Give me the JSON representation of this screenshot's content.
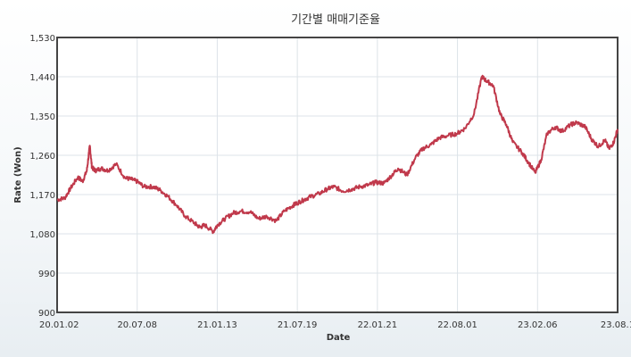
{
  "chart_data": {
    "type": "line",
    "title": "기간별 매매기준율",
    "xlabel": "Date",
    "ylabel": "Rate (Won)",
    "ylim": [
      900,
      1530
    ],
    "yticks": [
      "900",
      "990",
      "1,080",
      "1,170",
      "1,260",
      "1,350",
      "1,440",
      "1,530"
    ],
    "ytick_values": [
      900,
      990,
      1080,
      1170,
      1260,
      1350,
      1440,
      1530
    ],
    "xticks": [
      "20.01.02",
      "20.07.08",
      "21.01.13",
      "21.07.19",
      "22.01.21",
      "22.08.01",
      "23.02.06",
      "23.08.1"
    ],
    "xlim": [
      "2020-01-02",
      "2023-08-14"
    ],
    "grid": true,
    "colors": {
      "line": "#c0394b",
      "grid": "#dde3e8",
      "frame": "#444444"
    },
    "series": [
      {
        "x": [
          "2020-01-02",
          "2020-01-20",
          "2020-02-03",
          "2020-02-20",
          "2020-03-02",
          "2020-03-12",
          "2020-03-19",
          "2020-03-24",
          "2020-04-01",
          "2020-04-15",
          "2020-05-01",
          "2020-05-20",
          "2020-06-10",
          "2020-06-25",
          "2020-07-08",
          "2020-07-25",
          "2020-08-15",
          "2020-09-01",
          "2020-09-20",
          "2020-10-10",
          "2020-10-30",
          "2020-11-20",
          "2020-12-03",
          "2020-12-15",
          "2021-01-04",
          "2021-01-13",
          "2021-02-01",
          "2021-02-20",
          "2021-03-10",
          "2021-04-01",
          "2021-04-20",
          "2021-05-10",
          "2021-06-01",
          "2021-06-20",
          "2021-07-10",
          "2021-07-19",
          "2021-08-05",
          "2021-08-20",
          "2021-09-10",
          "2021-09-30",
          "2021-10-15",
          "2021-11-05",
          "2021-11-25",
          "2021-12-15",
          "2022-01-05",
          "2022-01-21",
          "2022-02-10",
          "2022-03-01",
          "2022-03-15",
          "2022-04-05",
          "2022-04-25",
          "2022-05-12",
          "2022-06-01",
          "2022-06-20",
          "2022-07-10",
          "2022-08-01",
          "2022-08-20",
          "2022-09-10",
          "2022-09-28",
          "2022-10-10",
          "2022-10-25",
          "2022-11-10",
          "2022-11-25",
          "2022-12-10",
          "2023-01-02",
          "2023-01-15",
          "2023-02-01",
          "2023-02-15",
          "2023-03-01",
          "2023-03-20",
          "2023-04-05",
          "2023-04-25",
          "2023-05-10",
          "2023-05-30",
          "2023-06-15",
          "2023-06-30",
          "2023-07-15",
          "2023-07-25",
          "2023-08-05",
          "2023-08-14"
        ],
        "values": [
          1158,
          1162,
          1185,
          1210,
          1200,
          1225,
          1282,
          1232,
          1225,
          1230,
          1225,
          1240,
          1208,
          1205,
          1200,
          1188,
          1188,
          1180,
          1165,
          1145,
          1120,
          1105,
          1095,
          1100,
          1085,
          1100,
          1115,
          1128,
          1132,
          1130,
          1115,
          1120,
          1110,
          1132,
          1145,
          1150,
          1158,
          1165,
          1172,
          1183,
          1188,
          1178,
          1182,
          1188,
          1192,
          1198,
          1196,
          1215,
          1230,
          1215,
          1255,
          1275,
          1285,
          1300,
          1305,
          1310,
          1322,
          1355,
          1440,
          1430,
          1420,
          1355,
          1330,
          1290,
          1265,
          1245,
          1220,
          1250,
          1310,
          1325,
          1315,
          1330,
          1335,
          1325,
          1295,
          1280,
          1295,
          1275,
          1290,
          1320
        ]
      }
    ]
  }
}
